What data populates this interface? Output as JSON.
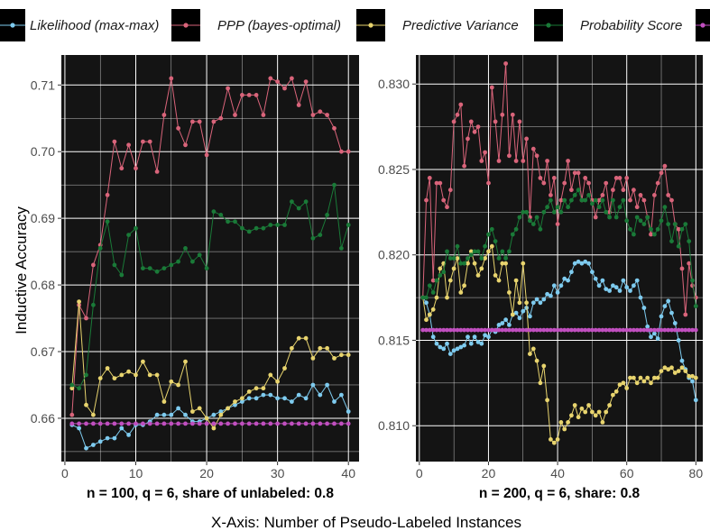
{
  "chart_data": {
    "type": "line",
    "ylabel": "Inductive Accuracy",
    "xlabel": "X-Axis: Number of Pseudo-Labeled Instances",
    "legend": {
      "position": "top",
      "entries": [
        {
          "name": "Likelihood (max-max)",
          "color": "#7ecbef"
        },
        {
          "name": "PPP (bayes-optimal)",
          "color": "#d9647a"
        },
        {
          "name": "Predictive Variance",
          "color": "#e8d46e"
        },
        {
          "name": "Probability Score",
          "color": "#1a7a38"
        },
        {
          "name": "",
          "color": "#c04fbf"
        }
      ]
    },
    "panels": [
      {
        "label": "n = 100, q = 6, share of unlabeled: 0.8",
        "xlim": [
          -0.5,
          41.5
        ],
        "ylim": [
          0.6535,
          0.7145
        ],
        "xticks": [
          0,
          10,
          20,
          30,
          40
        ],
        "yticks": [
          0.66,
          0.67,
          0.68,
          0.69,
          0.7,
          0.71
        ],
        "ytick_labels": [
          "0.66",
          "0.67",
          "0.68",
          "0.69",
          "0.70",
          "0.71"
        ],
        "grid": true,
        "series": [
          {
            "name": "Likelihood (max-max)",
            "color": "#7ecbef",
            "x_start": 1,
            "values": [
              0.659,
              0.6585,
              0.6555,
              0.656,
              0.6565,
              0.657,
              0.657,
              0.6585,
              0.6575,
              0.659,
              0.659,
              0.6595,
              0.6605,
              0.6605,
              0.6605,
              0.6615,
              0.6605,
              0.6595,
              0.6595,
              0.66,
              0.6605,
              0.661,
              0.6615,
              0.662,
              0.6625,
              0.663,
              0.663,
              0.6635,
              0.6635,
              0.663,
              0.663,
              0.6625,
              0.6635,
              0.663,
              0.665,
              0.6635,
              0.665,
              0.6625,
              0.6635,
              0.661
            ]
          },
          {
            "name": "PPP (bayes-optimal)",
            "color": "#d9647a",
            "x_start": 1,
            "values": [
              0.6605,
              0.677,
              0.675,
              0.683,
              0.686,
              0.6935,
              0.7015,
              0.6975,
              0.701,
              0.6975,
              0.7015,
              0.7015,
              0.697,
              0.7055,
              0.711,
              0.7035,
              0.701,
              0.7045,
              0.7045,
              0.6995,
              0.7045,
              0.705,
              0.7095,
              0.7055,
              0.7085,
              0.7085,
              0.7085,
              0.7055,
              0.711,
              0.7105,
              0.7095,
              0.711,
              0.707,
              0.7105,
              0.7055,
              0.706,
              0.7055,
              0.7035,
              0.7,
              0.7
            ]
          },
          {
            "name": "Predictive Variance",
            "color": "#e8d46e",
            "x_start": 1,
            "values": [
              0.6645,
              0.6775,
              0.662,
              0.6605,
              0.666,
              0.6675,
              0.666,
              0.6665,
              0.667,
              0.6665,
              0.6685,
              0.6665,
              0.6665,
              0.6625,
              0.6655,
              0.665,
              0.6685,
              0.661,
              0.6615,
              0.66,
              0.6585,
              0.6605,
              0.6615,
              0.6625,
              0.663,
              0.664,
              0.6645,
              0.6645,
              0.6665,
              0.6655,
              0.6675,
              0.6705,
              0.672,
              0.672,
              0.669,
              0.6705,
              0.6705,
              0.669,
              0.6695,
              0.6695
            ]
          },
          {
            "name": "Probability Score",
            "color": "#1a7a38",
            "x_start": 1,
            "values": [
              0.665,
              0.6645,
              0.6665,
              0.677,
              0.6855,
              0.6895,
              0.683,
              0.6815,
              0.6875,
              0.6885,
              0.6825,
              0.6825,
              0.682,
              0.6825,
              0.683,
              0.6835,
              0.6855,
              0.6835,
              0.6845,
              0.6825,
              0.691,
              0.6905,
              0.6895,
              0.6895,
              0.6885,
              0.688,
              0.6885,
              0.6885,
              0.689,
              0.689,
              0.689,
              0.6925,
              0.6915,
              0.6925,
              0.687,
              0.6875,
              0.6905,
              0.695,
              0.6855,
              0.689
            ]
          },
          {
            "name": "",
            "color": "#c04fbf",
            "x_start": 1,
            "constant": 0.6592,
            "n": 40
          }
        ]
      },
      {
        "label": "n = 200, q = 6, share: 0.8",
        "xlim": [
          -1,
          82
        ],
        "ylim": [
          0.8079,
          0.8317
        ],
        "xticks": [
          0,
          20,
          40,
          60,
          80
        ],
        "yticks": [
          0.81,
          0.815,
          0.82,
          0.825,
          0.83
        ],
        "ytick_labels": [
          "0.810",
          "0.815",
          "0.820",
          "0.825",
          "0.830"
        ],
        "grid": true,
        "series": [
          {
            "name": "Likelihood (max-max)",
            "color": "#7ecbef",
            "x_start": 1,
            "values": [
              0.8175,
              0.8172,
              0.8165,
              0.8152,
              0.8148,
              0.8146,
              0.8145,
              0.8148,
              0.8142,
              0.8144,
              0.8145,
              0.8146,
              0.8147,
              0.8152,
              0.8148,
              0.8152,
              0.8149,
              0.8148,
              0.8153,
              0.8152,
              0.8156,
              0.8155,
              0.8159,
              0.816,
              0.8162,
              0.8159,
              0.8165,
              0.8166,
              0.8163,
              0.8167,
              0.8169,
              0.8164,
              0.8172,
              0.8174,
              0.8172,
              0.8174,
              0.8177,
              0.8176,
              0.8182,
              0.8178,
              0.8182,
              0.8186,
              0.8185,
              0.819,
              0.8195,
              0.8196,
              0.8195,
              0.8196,
              0.8195,
              0.819,
              0.8186,
              0.8182,
              0.8185,
              0.818,
              0.8179,
              0.8182,
              0.8181,
              0.8179,
              0.8185,
              0.8181,
              0.8179,
              0.8182,
              0.8185,
              0.8175,
              0.8169,
              0.8158,
              0.8152,
              0.8154,
              0.8151,
              0.8164,
              0.817,
              0.8173,
              0.8166,
              0.816,
              0.815,
              0.8138,
              0.8133,
              0.8128,
              0.8126,
              0.8115
            ]
          },
          {
            "name": "PPP (bayes-optimal)",
            "color": "#d9647a",
            "x_start": 1,
            "values": [
              0.8175,
              0.8232,
              0.8245,
              0.8185,
              0.8242,
              0.8242,
              0.8232,
              0.8228,
              0.8238,
              0.8278,
              0.8282,
              0.8288,
              0.8252,
              0.8268,
              0.8278,
              0.8272,
              0.8275,
              0.8255,
              0.826,
              0.8242,
              0.8298,
              0.8278,
              0.8255,
              0.8282,
              0.8312,
              0.8258,
              0.8282,
              0.8255,
              0.8278,
              0.8255,
              0.8268,
              0.8222,
              0.8262,
              0.8258,
              0.8245,
              0.8242,
              0.8255,
              0.8235,
              0.8245,
              0.8218,
              0.8232,
              0.8242,
              0.8255,
              0.8238,
              0.8248,
              0.8248,
              0.8232,
              0.8245,
              0.8242,
              0.8232,
              0.8222,
              0.8232,
              0.8235,
              0.8242,
              0.8225,
              0.8238,
              0.8245,
              0.8245,
              0.8238,
              0.8245,
              0.8232,
              0.8238,
              0.8228,
              0.8235,
              0.8232,
              0.8222,
              0.8212,
              0.8235,
              0.8242,
              0.8248,
              0.8252,
              0.8235,
              0.8232,
              0.8218,
              0.8215,
              0.8192,
              0.8165,
              0.8195,
              0.8182,
              0.8175
            ]
          },
          {
            "name": "Predictive Variance",
            "color": "#e8d46e",
            "x_start": 1,
            "values": [
              0.8175,
              0.8162,
              0.8165,
              0.8168,
              0.8175,
              0.8192,
              0.8195,
              0.8175,
              0.8185,
              0.8192,
              0.8198,
              0.8178,
              0.8182,
              0.8195,
              0.8202,
              0.8195,
              0.8188,
              0.8192,
              0.8198,
              0.8202,
              0.8205,
              0.8188,
              0.8185,
              0.8195,
              0.8195,
              0.8178,
              0.8165,
              0.8185,
              0.8172,
              0.8195,
              0.8172,
              0.8142,
              0.8145,
              0.8138,
              0.8125,
              0.8135,
              0.8115,
              0.8092,
              0.809,
              0.8092,
              0.8102,
              0.8098,
              0.8102,
              0.8106,
              0.8112,
              0.8105,
              0.811,
              0.8108,
              0.8112,
              0.8108,
              0.8106,
              0.8108,
              0.8102,
              0.8108,
              0.8112,
              0.8118,
              0.812,
              0.8124,
              0.8125,
              0.8122,
              0.8128,
              0.8128,
              0.8125,
              0.8128,
              0.8126,
              0.8128,
              0.8125,
              0.8128,
              0.8128,
              0.8132,
              0.8134,
              0.8133,
              0.8134,
              0.8131,
              0.8132,
              0.8134,
              0.8132,
              0.8129,
              0.8129,
              0.8128
            ]
          },
          {
            "name": "Probability Score",
            "color": "#1a7a38",
            "x_start": 1,
            "values": [
              0.8175,
              0.8175,
              0.8182,
              0.8178,
              0.8185,
              0.8188,
              0.819,
              0.8202,
              0.8198,
              0.8198,
              0.8205,
              0.8195,
              0.8195,
              0.8198,
              0.82,
              0.8202,
              0.8202,
              0.8198,
              0.8205,
              0.8212,
              0.8215,
              0.8208,
              0.8198,
              0.8202,
              0.8198,
              0.8202,
              0.8212,
              0.8215,
              0.8222,
              0.8225,
              0.8225,
              0.822,
              0.8218,
              0.8222,
              0.8215,
              0.8225,
              0.8228,
              0.8232,
              0.8225,
              0.8228,
              0.8225,
              0.8232,
              0.8228,
              0.8232,
              0.8235,
              0.8238,
              0.8232,
              0.8232,
              0.8235,
              0.823,
              0.8232,
              0.8228,
              0.8232,
              0.8225,
              0.8222,
              0.8232,
              0.8222,
              0.8228,
              0.8232,
              0.822,
              0.8215,
              0.8212,
              0.8222,
              0.822,
              0.8218,
              0.8222,
              0.8215,
              0.8212,
              0.8215,
              0.822,
              0.8228,
              0.8218,
              0.8208,
              0.8218,
              0.8205,
              0.8215,
              0.8218,
              0.8208,
              0.8185,
              0.817
            ]
          },
          {
            "name": "",
            "color": "#c04fbf",
            "x_start": 1,
            "constant": 0.8156,
            "n": 80
          }
        ]
      }
    ]
  }
}
